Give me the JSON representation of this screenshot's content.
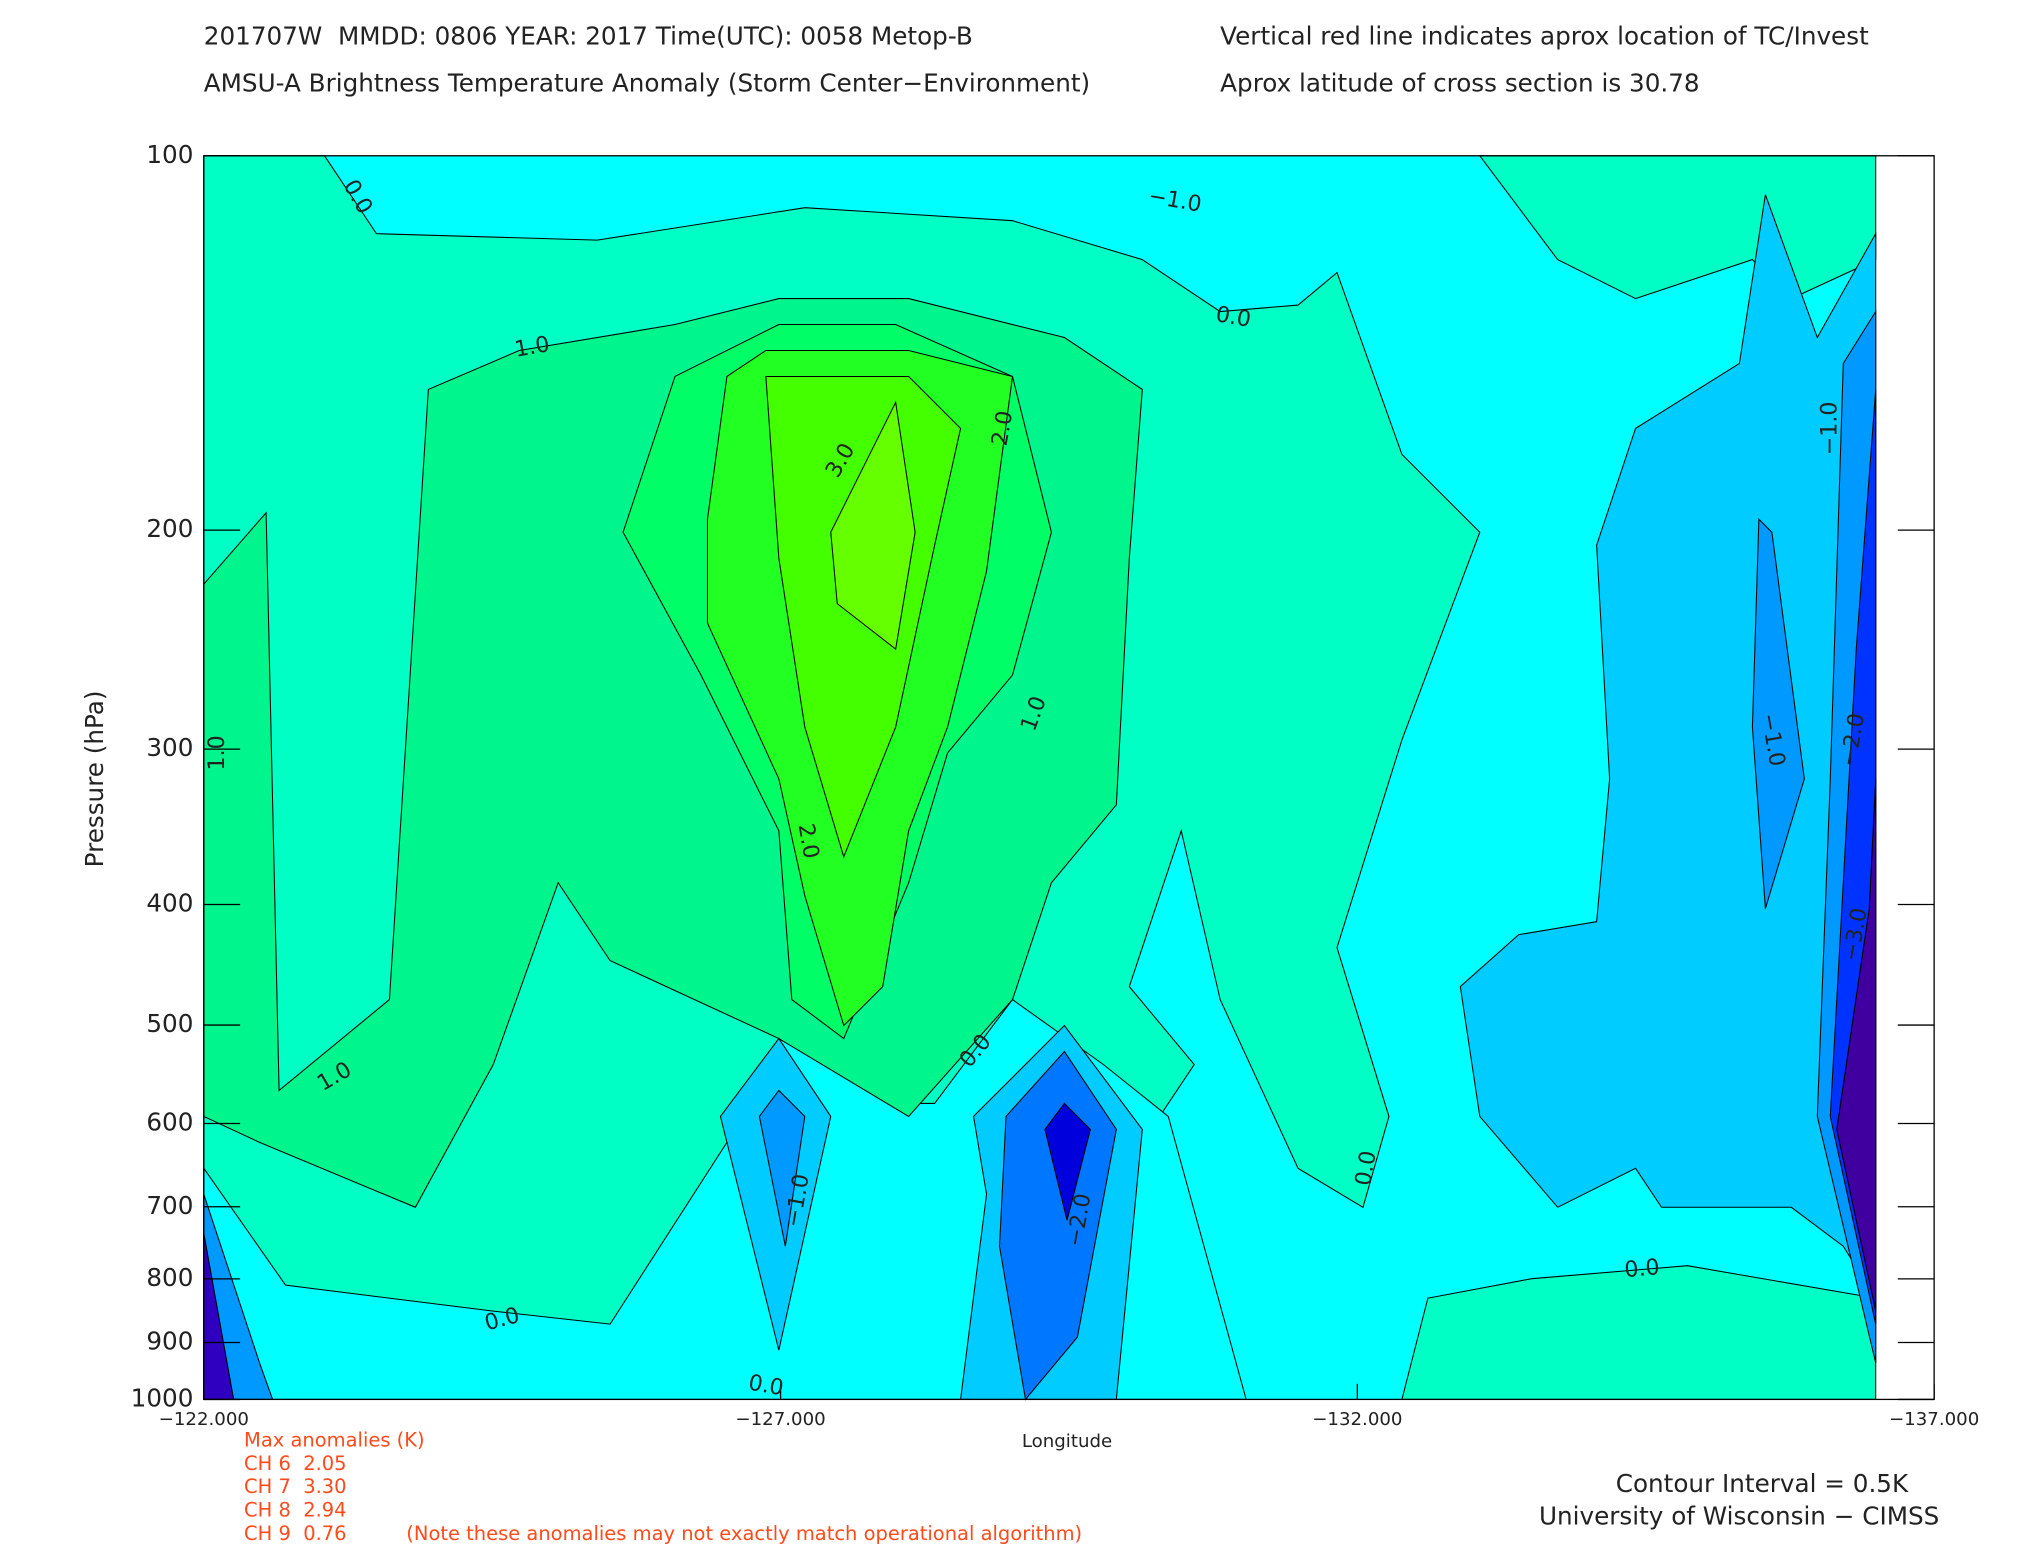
{
  "chart_data": {
    "type": "contour",
    "title": "201707W  MMDD: 0806 YEAR: 2017 Time(UTC): 0058 Metop-B",
    "subtitle": "AMSU-A Brightness Temperature Anomaly (Storm Center−Environment)",
    "notes": [
      "Vertical red line indicates aprox location of TC/Invest",
      "Aprox latitude of cross section is 30.78"
    ],
    "x_label": "Longitude",
    "y_label": "Pressure (hPa)",
    "xlim": [
      -122,
      -137
    ],
    "xticks": [
      {
        "value": -122,
        "label": "−122.000"
      },
      {
        "value": -127,
        "label": "−127.000"
      },
      {
        "value": -132,
        "label": "−132.000"
      },
      {
        "value": -137,
        "label": "−137.000"
      }
    ],
    "ylim": [
      1000,
      100
    ],
    "yscale": "log",
    "yticks": [
      100,
      200,
      300,
      400,
      500,
      600,
      700,
      800,
      900,
      1000
    ],
    "contour_labels": [
      {
        "value": 0,
        "label": "0.0"
      },
      {
        "value": -1,
        "label": "−1.0"
      },
      {
        "value": 0,
        "label": "0.0"
      },
      {
        "value": 1,
        "label": "1.0"
      },
      {
        "value": 3,
        "label": "3.0"
      },
      {
        "value": 2,
        "label": "2.0"
      },
      {
        "value": 1,
        "label": "1.0"
      },
      {
        "value": 1,
        "label": "1.0"
      },
      {
        "value": 2,
        "label": "2.0"
      },
      {
        "value": -1,
        "label": "−1.0"
      },
      {
        "value": -1,
        "label": "−1.0"
      },
      {
        "value": -2,
        "label": "−2.0"
      },
      {
        "value": -3,
        "label": "−3.0"
      },
      {
        "value": 1,
        "label": "1.0"
      },
      {
        "value": 0,
        "label": "0.0"
      },
      {
        "value": -1,
        "label": "−1.0"
      },
      {
        "value": -2,
        "label": "−2.0"
      },
      {
        "value": 0,
        "label": "0.0"
      },
      {
        "value": 0,
        "label": "0.0"
      },
      {
        "value": 0,
        "label": "0.0"
      },
      {
        "value": 0,
        "label": "0.0"
      }
    ],
    "max_anomalies_title": "Max anomalies (K)",
    "max_anomalies": [
      "CH 6  2.05",
      "CH 7  3.30",
      "CH 8  2.94",
      "CH 9  0.76"
    ],
    "disclaimer": "(Note these anomalies may not exactly match operational algorithm)",
    "contour_interval": "Contour Interval = 0.5K",
    "credit": "University of Wisconsin − CIMSS"
  }
}
